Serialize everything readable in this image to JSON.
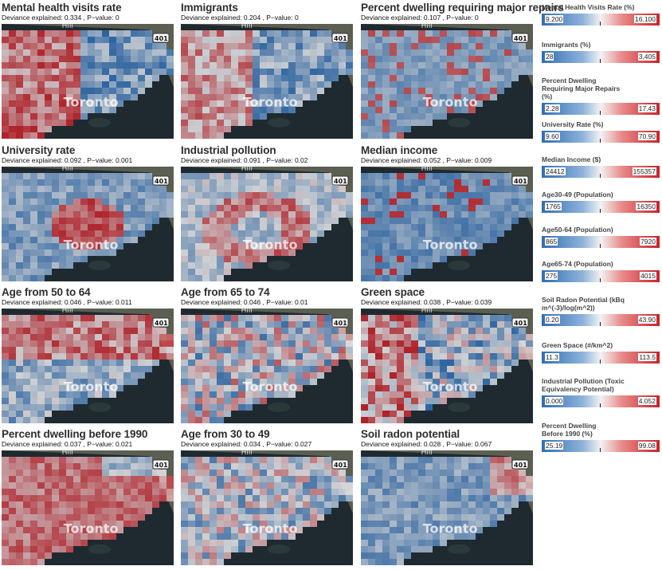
{
  "map_labels": {
    "city": "Toronto",
    "highway": "401",
    "place": "Hill"
  },
  "panels": [
    {
      "title": "Mental health visits rate",
      "deviance": "Deviance explained: 0.334 , P−value: 0",
      "pattern": "high_west"
    },
    {
      "title": "Immigrants",
      "deviance": "Deviance explained: 0.204 , P−value: 0",
      "pattern": "high_west_light"
    },
    {
      "title": "Percent dwelling requiring major repairs",
      "deviance": "Deviance explained: 0.107 , P−value: 0",
      "pattern": "blue_spotty"
    },
    {
      "title": "University rate",
      "deviance": "Deviance explained: 0.092 , P−value: 0.001",
      "pattern": "central_red"
    },
    {
      "title": "Industrial pollution",
      "deviance": "Deviance explained: 0.091 , P−value: 0.02",
      "pattern": "ring_red"
    },
    {
      "title": "Median income",
      "deviance": "Deviance explained: 0.052 , P−value: 0.009",
      "pattern": "mostly_blue"
    },
    {
      "title": "Age from 50 to 64",
      "deviance": "Deviance explained: 0.046 , P−value: 0.011",
      "pattern": "north_red"
    },
    {
      "title": "Age from 65 to 74",
      "deviance": "Deviance explained: 0.046 , P−value: 0.01",
      "pattern": "mixed"
    },
    {
      "title": "Green space",
      "deviance": "Deviance explained: 0.038 , P−value: 0.039",
      "pattern": "green_mixed"
    },
    {
      "title": "Percent dwelling before 1990",
      "deviance": "Deviance explained: 0.037 , P−value: 0.021",
      "pattern": "red_south"
    },
    {
      "title": "Age from 30 to 49",
      "deviance": "Deviance explained: 0.034 , P−value: 0.027",
      "pattern": "mixed_light"
    },
    {
      "title": "Soil radon potential",
      "deviance": "Deviance explained: 0.028 , P−value: 0.067",
      "pattern": "blue_east_red"
    }
  ],
  "legend": [
    {
      "label": "Mental Health Visits Rate (%)",
      "min": "9.200",
      "max": "16.100"
    },
    {
      "label": "Immigrants (%)",
      "min": "28",
      "max": "3,405"
    },
    {
      "label": "Percent Dwelling Requiring Major Repairs (%)",
      "min": "2.28",
      "max": "17.43"
    },
    {
      "label": "University Rate (%)",
      "min": "9.60",
      "max": "70.90"
    },
    {
      "label": "Median Income ($)",
      "min": "24412",
      "max": "155357"
    },
    {
      "label": "Age30-49 (Population)",
      "min": "1765",
      "max": "16350"
    },
    {
      "label": "Age50-64 (Population)",
      "min": "865",
      "max": "7920"
    },
    {
      "label": "Age65-74 (Population)",
      "min": "275",
      "max": "4015"
    },
    {
      "label": "Soil Radon Potential (kBq m^(-3)/log(m^2))",
      "min": "0.20",
      "max": "43.90"
    },
    {
      "label": "Green Space (#/km^2)",
      "min": "11.3",
      "max": "113.5"
    },
    {
      "label": "Industrial Pollution (Toxic Equivalency Potential)",
      "min": "0.000",
      "max": "4.052"
    },
    {
      "label": "Percent Dwelling Before 1990 (%)",
      "min": "25.19",
      "max": "99.08"
    }
  ],
  "colors": {
    "low": "#2f6db3",
    "mid": "#f2f2f2",
    "high": "#c8232a",
    "water": "#1f2a30",
    "land": "#5b5f52"
  }
}
